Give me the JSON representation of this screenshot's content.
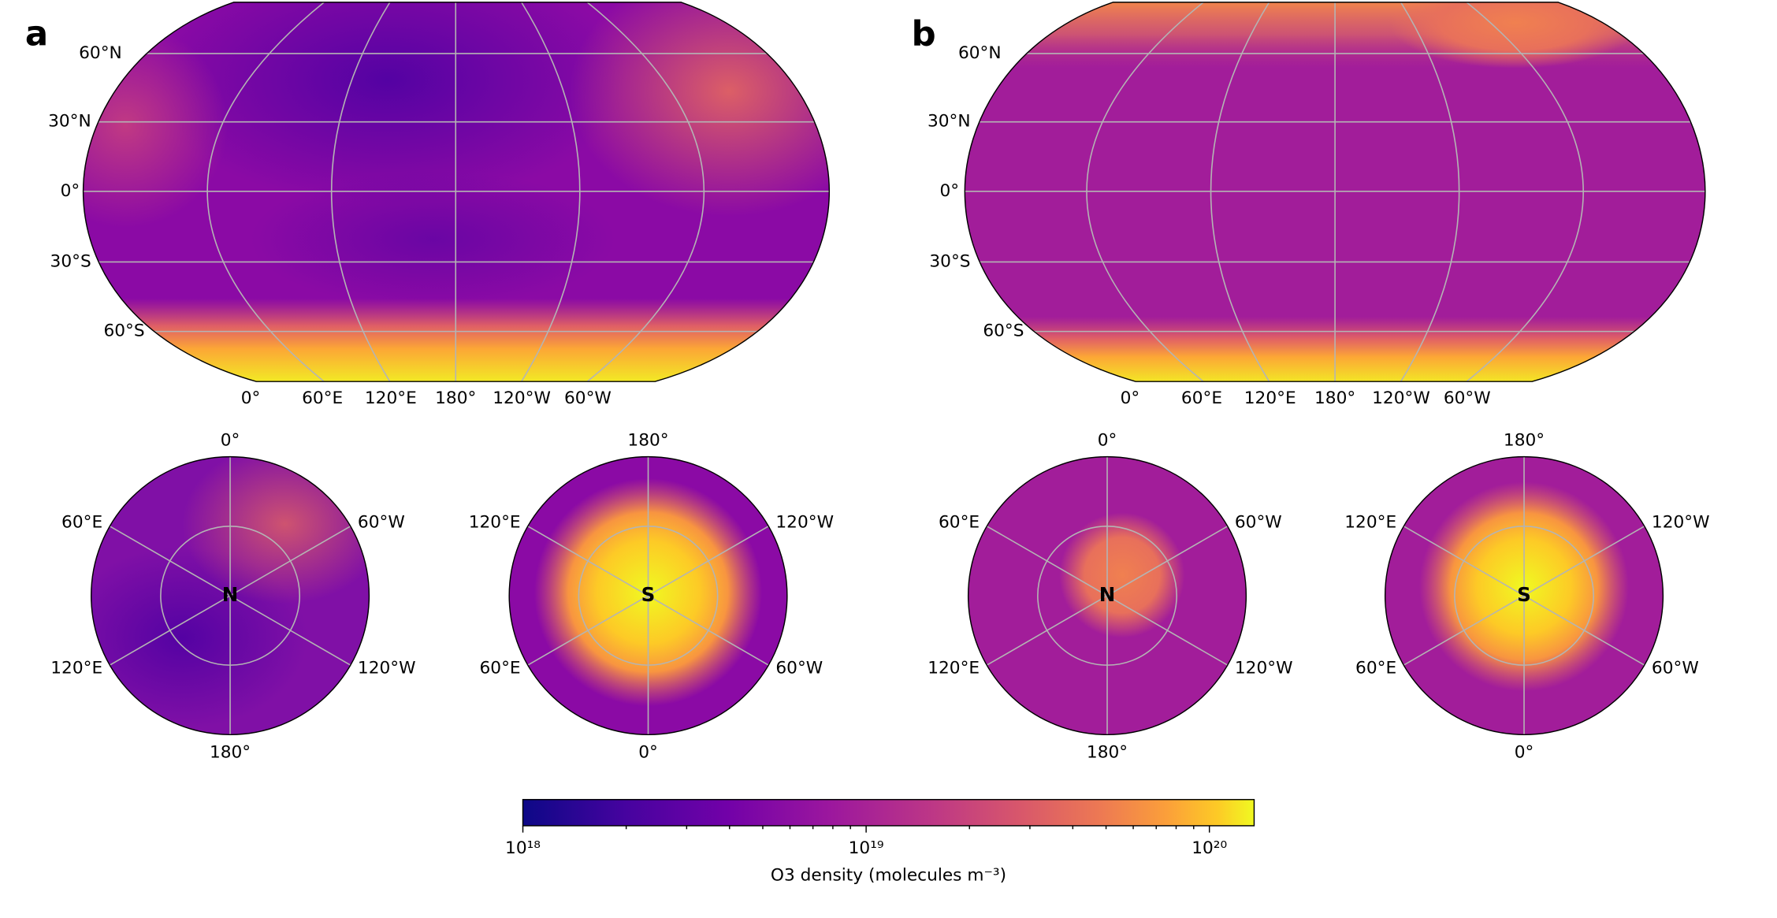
{
  "panels": [
    {
      "letter": "a",
      "map": {
        "lat_labels": [
          "60°N",
          "30°N",
          "0°",
          "30°S",
          "60°S"
        ],
        "lon_labels": [
          "0°",
          "60°E",
          "120°E",
          "180°",
          "120°W",
          "60°W"
        ]
      },
      "north": {
        "center": "N",
        "labels": [
          "0°",
          "60°E",
          "60°W",
          "120°E",
          "120°W",
          "180°"
        ]
      },
      "south": {
        "center": "S",
        "labels": [
          "180°",
          "120°E",
          "120°W",
          "60°E",
          "60°W",
          "0°"
        ]
      }
    },
    {
      "letter": "b",
      "map": {
        "lat_labels": [
          "60°N",
          "30°N",
          "0°",
          "30°S",
          "60°S"
        ],
        "lon_labels": [
          "0°",
          "60°E",
          "120°E",
          "180°",
          "120°W",
          "60°W"
        ]
      },
      "north": {
        "center": "N",
        "labels": [
          "0°",
          "60°E",
          "60°W",
          "120°E",
          "120°W",
          "180°"
        ]
      },
      "south": {
        "center": "S",
        "labels": [
          "180°",
          "120°E",
          "120°W",
          "60°E",
          "60°W",
          "0°"
        ]
      }
    }
  ],
  "colorbar": {
    "label": "O3 density (molecules m⁻³)",
    "log": true,
    "lim": [
      1e+18,
      1.35e+20
    ],
    "ticks": [
      {
        "value": 1e+18,
        "label": "10¹⁸"
      },
      {
        "value": 1e+19,
        "label": "10¹⁹"
      },
      {
        "value": 1e+20,
        "label": "10²⁰"
      }
    ],
    "minor_ticks": [
      2e+18,
      3e+18,
      4e+18,
      5e+18,
      6e+18,
      7e+18,
      8e+18,
      9e+18,
      2e+19,
      3e+19,
      4e+19,
      5e+19,
      6e+19,
      7e+19,
      8e+19,
      9e+19
    ]
  }
}
